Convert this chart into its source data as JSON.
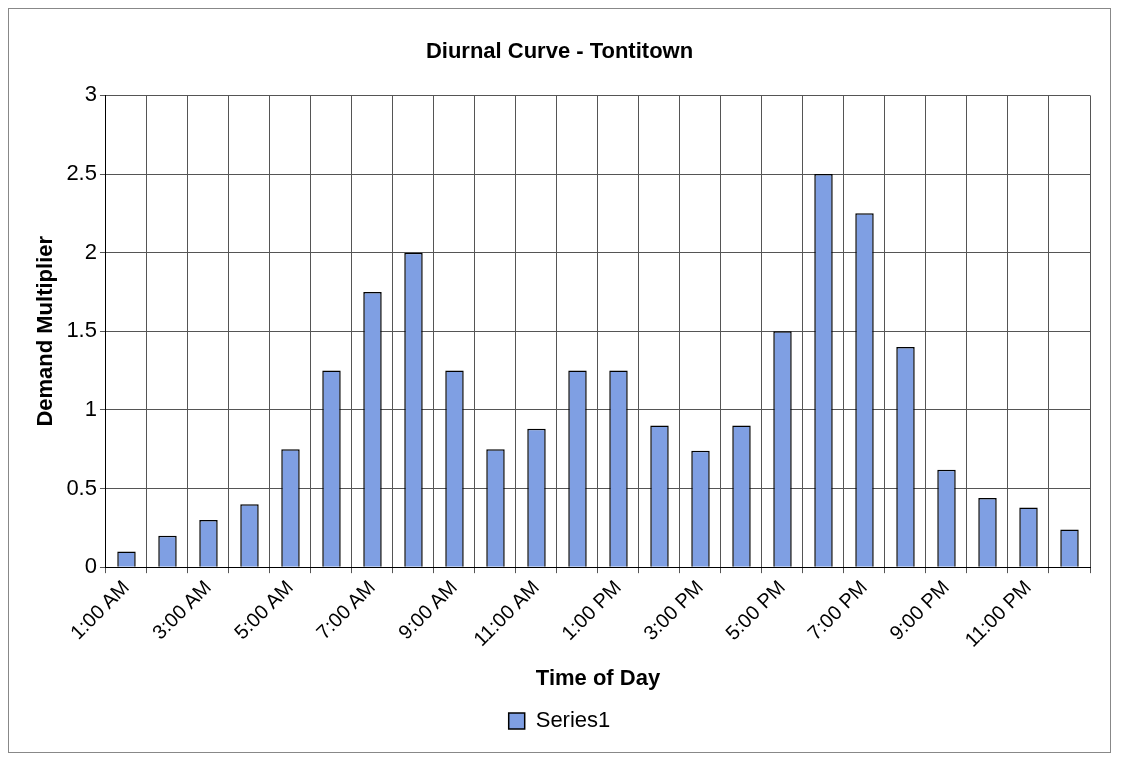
{
  "chart_data": {
    "type": "bar",
    "title": "Diurnal Curve - Tontitown",
    "xlabel": "Time of Day",
    "ylabel": "Demand Multiplier",
    "categories": [
      "1:00 AM",
      null,
      "3:00 AM",
      null,
      "5:00 AM",
      null,
      "7:00 AM",
      null,
      "9:00 AM",
      null,
      "11:00 AM",
      null,
      "1:00 PM",
      null,
      "3:00 PM",
      null,
      "5:00 PM",
      null,
      "7:00 PM",
      null,
      "9:00 PM",
      null,
      "11:00 PM",
      null
    ],
    "series": [
      {
        "name": "Series1",
        "color": "#7f9fe3",
        "values": [
          0.1,
          0.2,
          0.3,
          0.4,
          0.75,
          1.25,
          1.75,
          2.0,
          1.25,
          0.75,
          0.88,
          1.25,
          1.25,
          0.9,
          0.74,
          0.9,
          1.5,
          2.5,
          2.25,
          1.4,
          0.62,
          0.44,
          0.38,
          0.24
        ]
      }
    ],
    "ylim": [
      0,
      3
    ],
    "yticks": [
      0,
      0.5,
      1,
      1.5,
      2,
      2.5,
      3
    ],
    "grid": true,
    "legend": "bottom"
  }
}
